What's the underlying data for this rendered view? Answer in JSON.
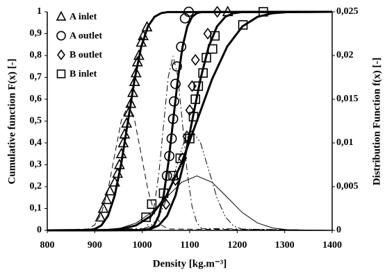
{
  "chart_data": {
    "type": "scatter",
    "xlabel": "Density [kg.m⁻³]",
    "ylabel": "Cumulative function F(x) [-]",
    "y2label": "Distribution Function f(x) [-]",
    "xlim": [
      800,
      1400
    ],
    "xticks": [
      800,
      900,
      1000,
      1100,
      1200,
      1300,
      1400
    ],
    "ylim": [
      0,
      1
    ],
    "yticks": [
      0,
      {
        "value": 0.1,
        "label": "0,1"
      },
      {
        "value": 0.2,
        "label": "0,2"
      },
      {
        "value": 0.3,
        "label": "0,3"
      },
      {
        "value": 0.4,
        "label": "0,4"
      },
      {
        "value": 0.5,
        "label": "0,5"
      },
      {
        "value": 0.6,
        "label": "0,6"
      },
      {
        "value": 0.7,
        "label": "0,7"
      },
      {
        "value": 0.8,
        "label": "0,8"
      },
      {
        "value": 0.9,
        "label": "0,9"
      },
      1
    ],
    "y2lim": [
      0,
      0.025
    ],
    "y2ticks": [
      0,
      {
        "value": 0.005,
        "label": "0,005"
      },
      {
        "value": 0.01,
        "label": "0,01"
      },
      {
        "value": 0.015,
        "label": "0,015"
      },
      {
        "value": 0.02,
        "label": "0,02"
      },
      {
        "value": 0.025,
        "label": "0,025"
      }
    ],
    "legend": "upper left",
    "grid": false,
    "series": [
      {
        "name": "A inlet",
        "marker": "triangle",
        "color": "#000000",
        "x": [
          912,
          918,
          925,
          932,
          942,
          948,
          952,
          956,
          960,
          963,
          967,
          972,
          976,
          980,
          984,
          987,
          990,
          993,
          998,
          1002,
          1010,
          1180
        ],
        "values": [
          0.06,
          0.1,
          0.14,
          0.18,
          0.22,
          0.26,
          0.3,
          0.35,
          0.4,
          0.44,
          0.49,
          0.54,
          0.58,
          0.63,
          0.68,
          0.72,
          0.77,
          0.8,
          0.86,
          0.89,
          0.93,
          1.0
        ]
      },
      {
        "name": "A outlet",
        "marker": "circle",
        "color": "#000000",
        "x": [
          1052,
          1057,
          1062,
          1065,
          1067,
          1070,
          1073,
          1082,
          1090,
          1098
        ],
        "values": [
          0.25,
          0.34,
          0.42,
          0.51,
          0.59,
          0.67,
          0.75,
          0.84,
          0.97,
          1.0
        ]
      },
      {
        "name": "B outlet",
        "marker": "diamond",
        "color": "#000000",
        "x": [
          1050,
          1070,
          1085,
          1094,
          1100,
          1105,
          1112,
          1138,
          1158
        ],
        "values": [
          0.12,
          0.23,
          0.33,
          0.43,
          0.55,
          0.66,
          0.78,
          0.9,
          1.0
        ]
      },
      {
        "name": "B inlet",
        "marker": "square",
        "color": "#000000",
        "x": [
          1008,
          1020,
          1045,
          1065,
          1080,
          1100,
          1108,
          1112,
          1118,
          1128,
          1135,
          1148,
          1153,
          1212,
          1255
        ],
        "values": [
          0.06,
          0.12,
          0.17,
          0.25,
          0.33,
          0.42,
          0.52,
          0.6,
          0.66,
          0.72,
          0.79,
          0.83,
          0.89,
          0.94,
          1.0
        ]
      }
    ],
    "curves": [
      {
        "axis": "y",
        "style": "solid",
        "width": 3,
        "x": [
          800,
          886,
          900,
          914,
          928,
          942,
          956,
          970,
          984,
          998,
          1012,
          1026,
          1040,
          1054,
          1400
        ],
        "values": [
          0,
          0.0013,
          0.0062,
          0.0228,
          0.0668,
          0.1587,
          0.3085,
          0.5,
          0.6915,
          0.8413,
          0.9332,
          0.9772,
          0.9938,
          0.9987,
          1
        ]
      },
      {
        "axis": "y",
        "style": "solid",
        "width": 3,
        "x": [
          800,
          1005,
          1015,
          1025,
          1035,
          1045,
          1055,
          1065,
          1075,
          1085,
          1095,
          1105,
          1115,
          1125,
          1400
        ],
        "values": [
          0,
          0.0013,
          0.0062,
          0.0228,
          0.0668,
          0.1587,
          0.3085,
          0.5,
          0.6915,
          0.8413,
          0.9332,
          0.9772,
          0.9938,
          0.9987,
          1
        ]
      },
      {
        "axis": "y",
        "style": "solid",
        "width": 3,
        "x": [
          800,
          1000,
          1017.5,
          1035,
          1052.5,
          1070,
          1087.5,
          1105,
          1122.5,
          1140,
          1157.5,
          1175,
          1192.5,
          1210,
          1400
        ],
        "values": [
          0,
          0.0013,
          0.0062,
          0.0228,
          0.0668,
          0.1587,
          0.3085,
          0.5,
          0.6915,
          0.8413,
          0.9332,
          0.9772,
          0.9938,
          0.9987,
          1
        ]
      },
      {
        "axis": "y",
        "style": "solid",
        "width": 3,
        "x": [
          800,
          923,
          955,
          987,
          1019,
          1051,
          1083,
          1115,
          1147,
          1179,
          1211,
          1243,
          1275,
          1307,
          1400
        ],
        "values": [
          0,
          0.0013,
          0.0062,
          0.0228,
          0.0668,
          0.1587,
          0.3085,
          0.5,
          0.6915,
          0.8413,
          0.9332,
          0.9772,
          0.9938,
          0.9987,
          1
        ]
      },
      {
        "axis": "y2",
        "style": "dashed",
        "width": 1,
        "x": [
          800,
          886,
          900,
          914,
          928,
          942,
          956,
          970,
          984,
          998,
          1012,
          1026,
          1040,
          1054,
          1400
        ],
        "values": [
          0,
          0.00016,
          0.00063,
          0.00193,
          0.00463,
          0.00864,
          0.01258,
          0.01425,
          0.01258,
          0.00864,
          0.00463,
          0.00193,
          0.00063,
          0.00016,
          0
        ]
      },
      {
        "axis": "y2",
        "style": "dashdot",
        "width": 1,
        "x": [
          800,
          1005,
          1015,
          1025,
          1035,
          1045,
          1055,
          1065,
          1075,
          1085,
          1095,
          1105,
          1115,
          1125,
          1400
        ],
        "values": [
          0,
          0.00022,
          0.00088,
          0.0027,
          0.00648,
          0.0121,
          0.0176,
          0.01995,
          0.0176,
          0.0121,
          0.00648,
          0.0027,
          0.00088,
          0.00022,
          0
        ]
      },
      {
        "axis": "y2",
        "style": "dashdotdot",
        "width": 1,
        "x": [
          800,
          1000,
          1017.5,
          1035,
          1052.5,
          1070,
          1087.5,
          1105,
          1122.5,
          1140,
          1157.5,
          1175,
          1192.5,
          1210,
          1400
        ],
        "values": [
          0,
          0.00013,
          0.0005,
          0.00154,
          0.0037,
          0.00691,
          0.01006,
          0.0114,
          0.01006,
          0.00691,
          0.0037,
          0.00154,
          0.0005,
          0.00013,
          0
        ]
      },
      {
        "axis": "y2",
        "style": "solid",
        "width": 1,
        "x": [
          800,
          923,
          955,
          987,
          1019,
          1051,
          1083,
          1115,
          1147,
          1179,
          1211,
          1243,
          1275,
          1307,
          1400
        ],
        "values": [
          0,
          7e-05,
          0.00027,
          0.00084,
          0.00202,
          0.00378,
          0.0055,
          0.00623,
          0.0055,
          0.00378,
          0.00202,
          0.00084,
          0.00027,
          7e-05,
          0
        ]
      }
    ]
  }
}
